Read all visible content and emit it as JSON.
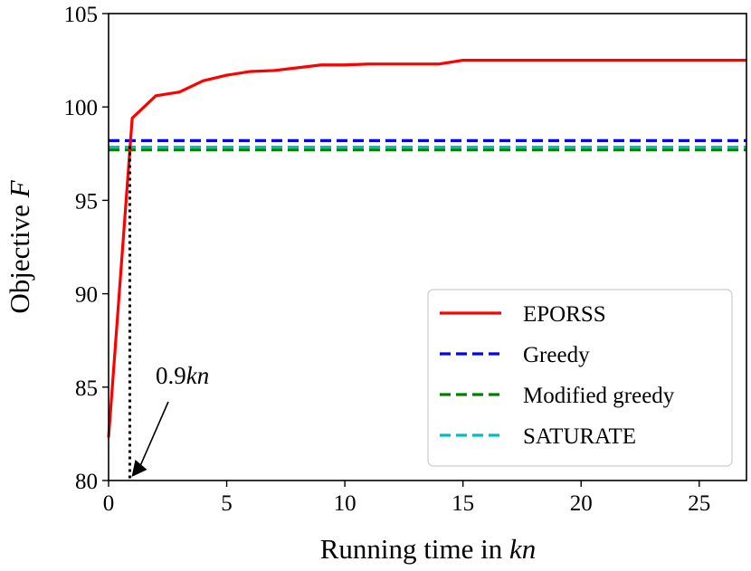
{
  "chart_data": {
    "type": "line",
    "title": "",
    "xlabel_plain": "Running time in ",
    "xlabel_italic": "kn",
    "ylabel_plain": "Objective ",
    "ylabel_italic": "F",
    "xlim": [
      0,
      27
    ],
    "ylim": [
      80,
      105
    ],
    "xticks": [
      0,
      5,
      10,
      15,
      20,
      25
    ],
    "yticks": [
      80,
      85,
      90,
      95,
      100,
      105
    ],
    "grid": false,
    "legend_position": "lower-right",
    "series": [
      {
        "name": "EPORSS",
        "style": "solid",
        "color": "#ff0000",
        "x": [
          0,
          1,
          2,
          3,
          4,
          5,
          6,
          7,
          8,
          9,
          10,
          11,
          12,
          13,
          14,
          15,
          16,
          17,
          18,
          19,
          20,
          21,
          22,
          23,
          24,
          25,
          26,
          27
        ],
        "y": [
          82.3,
          99.4,
          100.6,
          100.8,
          101.4,
          101.7,
          101.9,
          101.95,
          102.1,
          102.25,
          102.25,
          102.3,
          102.3,
          102.3,
          102.3,
          102.5,
          102.5,
          102.5,
          102.5,
          102.5,
          102.5,
          102.5,
          102.5,
          102.5,
          102.5,
          102.5,
          102.5,
          102.5
        ]
      },
      {
        "name": "Greedy",
        "style": "dashed",
        "color": "#0000ff",
        "x": [
          0,
          27
        ],
        "y": [
          98.2,
          98.2
        ]
      },
      {
        "name": "Modified greedy",
        "style": "dashed",
        "color": "#008000",
        "x": [
          0,
          27
        ],
        "y": [
          97.7,
          97.7
        ]
      },
      {
        "name": "SATURATE",
        "style": "dashed",
        "color": "#00bfbf",
        "x": [
          0,
          27
        ],
        "y": [
          97.85,
          97.85
        ]
      }
    ],
    "annotation": {
      "text_number": "0.9",
      "text_italic": "kn",
      "x": 0.9,
      "y_from": 97.9,
      "y_to": 80
    }
  }
}
